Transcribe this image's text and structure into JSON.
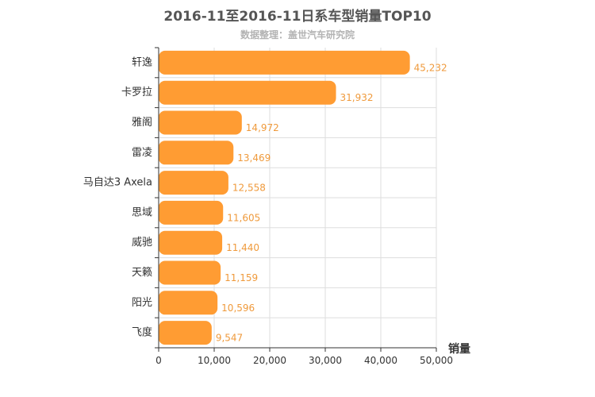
{
  "chart_data": {
    "type": "bar",
    "orientation": "horizontal",
    "title": "2016-11至2016-11日系车型销量TOP10",
    "subtitle": "数据整理：盖世汽车研究院",
    "xlabel": "销量",
    "ylabel": "",
    "categories": [
      "轩逸",
      "卡罗拉",
      "雅阁",
      "雷凌",
      "马自达3 Axela",
      "思域",
      "威驰",
      "天籁",
      "阳光",
      "飞度"
    ],
    "values": [
      45232,
      31932,
      14972,
      13469,
      12558,
      11605,
      11440,
      11159,
      10596,
      9547
    ],
    "value_labels": [
      "45,232",
      "31,932",
      "14,972",
      "13,469",
      "12,558",
      "11,605",
      "11,440",
      "11,159",
      "10,596",
      "9,547"
    ],
    "xlim": [
      0,
      50000
    ],
    "x_ticks": [
      0,
      10000,
      20000,
      30000,
      40000,
      50000
    ],
    "x_tick_labels": [
      "0",
      "10,000",
      "20,000",
      "30,000",
      "40,000",
      "50,000"
    ],
    "grid": true,
    "bar_color": "#ff9c33",
    "value_label_color": "#ef9a3c"
  }
}
